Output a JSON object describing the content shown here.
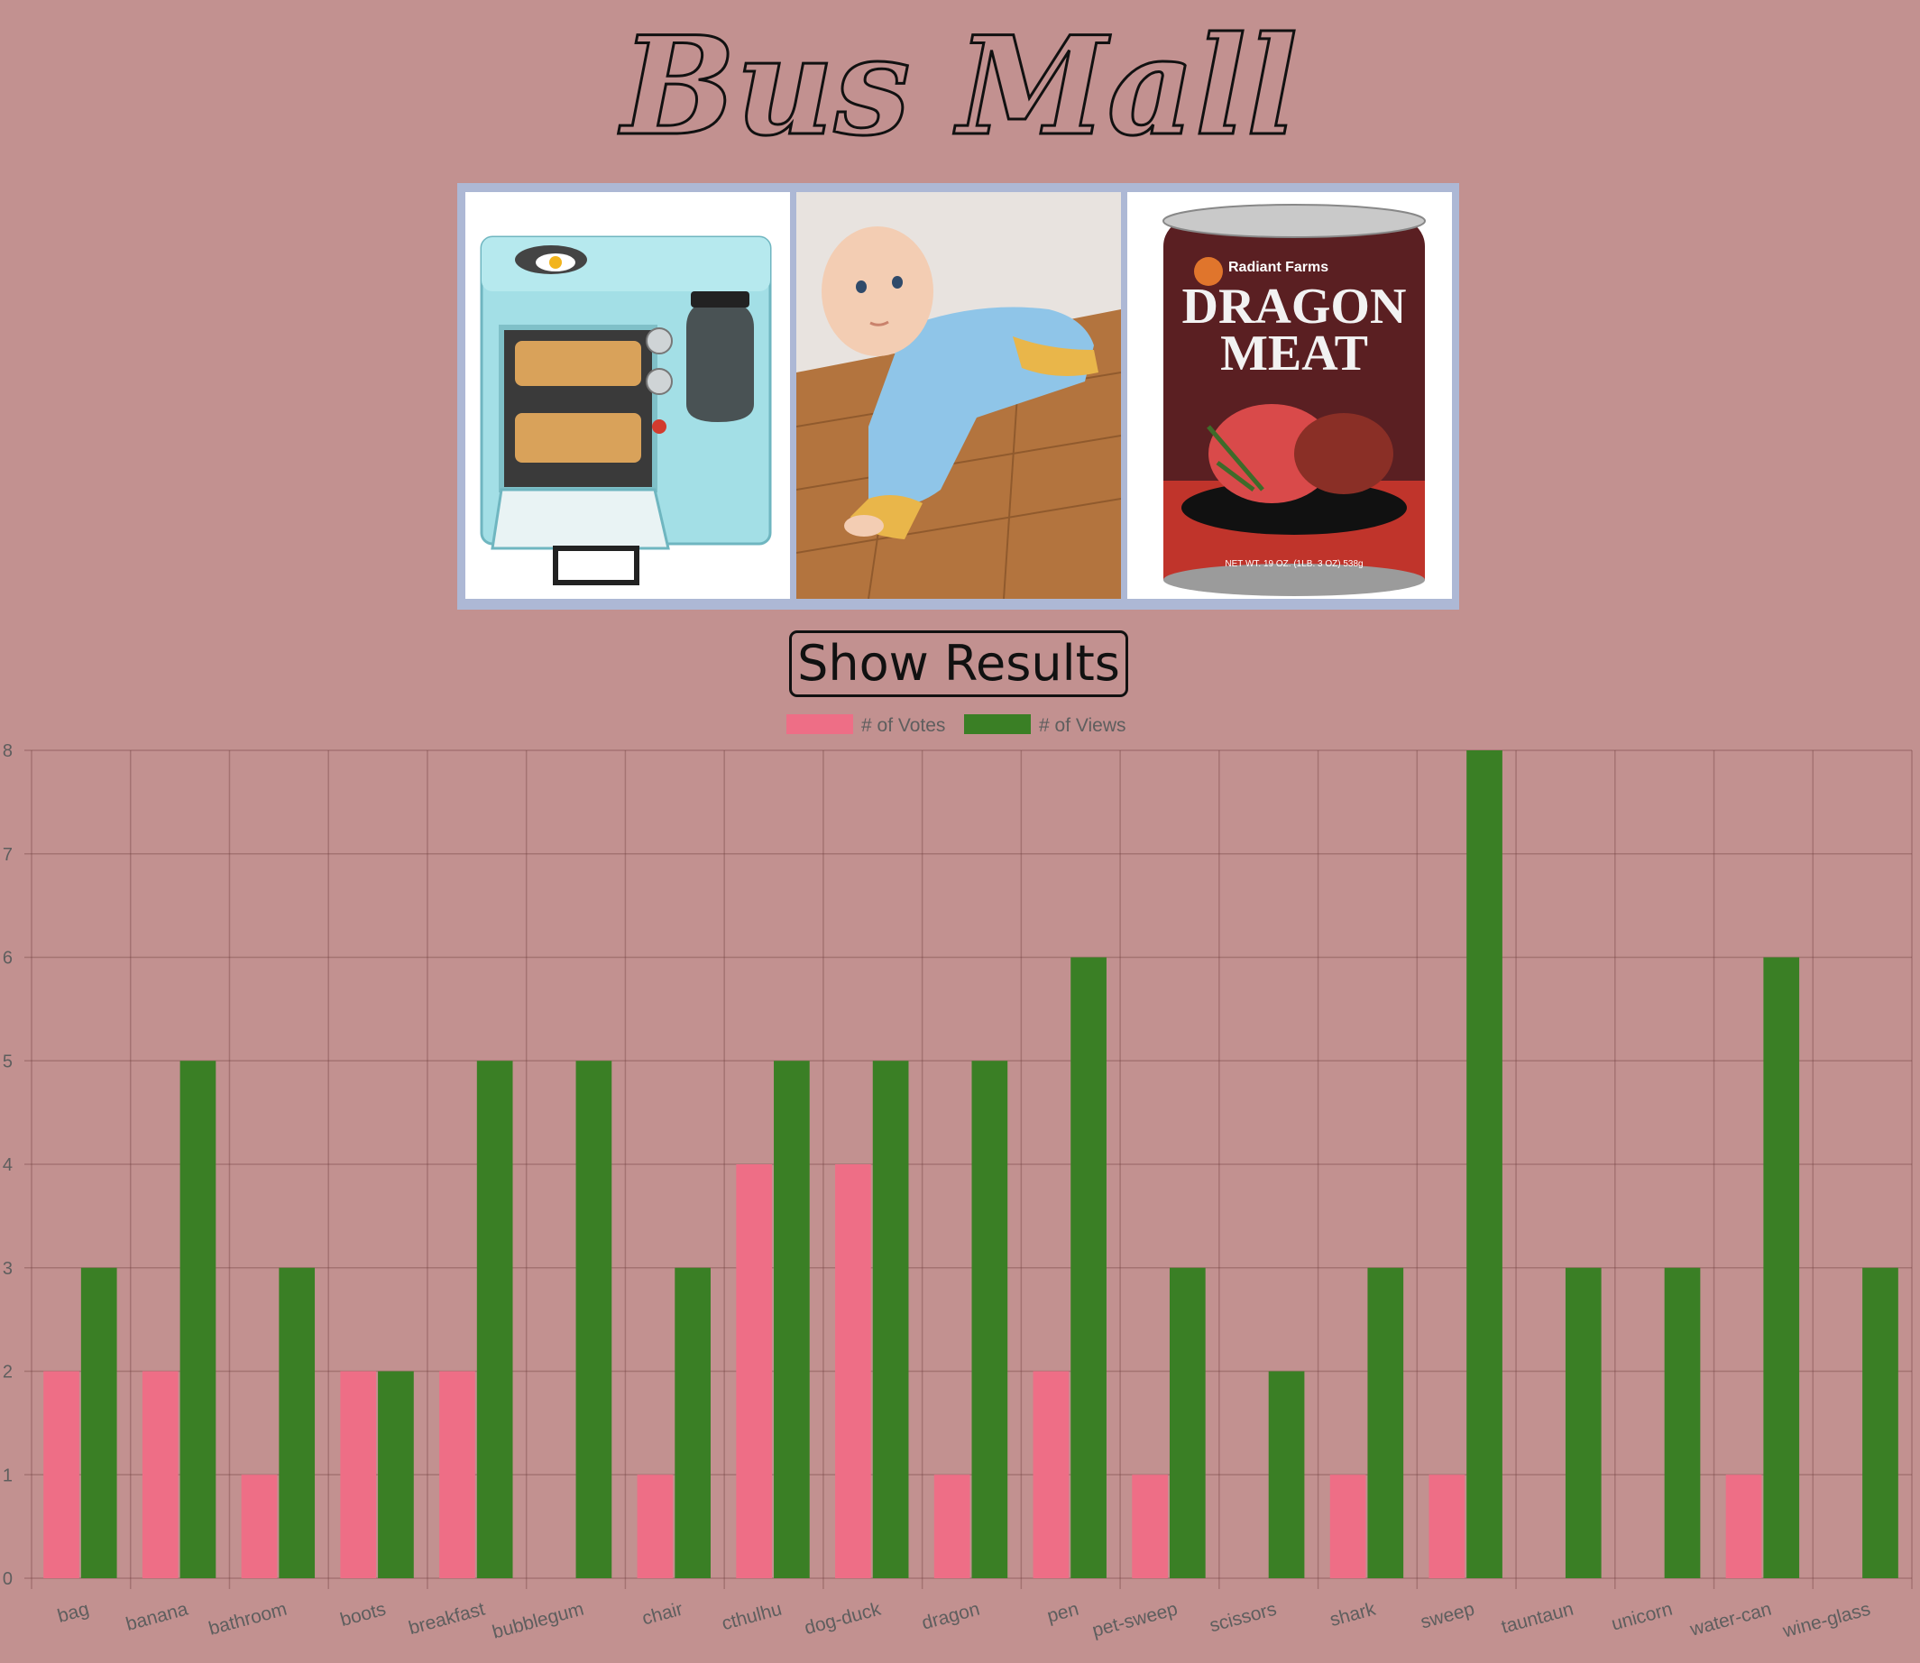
{
  "page_title": "Bus Mall",
  "products": [
    {
      "name": "breakfast"
    },
    {
      "name": "pet-sweep"
    },
    {
      "name": "dragon",
      "text_brand": "Radiant Farms",
      "text_line1": "DRAGON",
      "text_line2": "MEAT",
      "text_net": "NET WT. 19 OZ. (1LB. 3 OZ) 538g"
    }
  ],
  "show_results_label": "Show Results",
  "chart_data": {
    "type": "bar",
    "categories": [
      "bag",
      "banana",
      "bathroom",
      "boots",
      "breakfast",
      "bubblegum",
      "chair",
      "cthulhu",
      "dog-duck",
      "dragon",
      "pen",
      "pet-sweep",
      "scissors",
      "shark",
      "sweep",
      "tauntaun",
      "unicorn",
      "water-can",
      "wine-glass"
    ],
    "series": [
      {
        "name": "# of Votes",
        "color": "#ee6e86",
        "values": [
          2,
          2,
          1,
          2,
          2,
          0,
          1,
          4,
          4,
          1,
          2,
          1,
          0,
          1,
          1,
          0,
          0,
          1,
          0
        ]
      },
      {
        "name": "# of Views",
        "color": "#3a7f25",
        "values": [
          3,
          5,
          3,
          2,
          5,
          5,
          3,
          5,
          5,
          5,
          6,
          3,
          2,
          3,
          8,
          3,
          3,
          6,
          3
        ]
      }
    ],
    "ylim": [
      0,
      8
    ],
    "yticks": [
      "0",
      "1",
      "2",
      "3",
      "4",
      "5",
      "6",
      "7",
      "8"
    ],
    "grid": true,
    "legend_position": "top"
  }
}
